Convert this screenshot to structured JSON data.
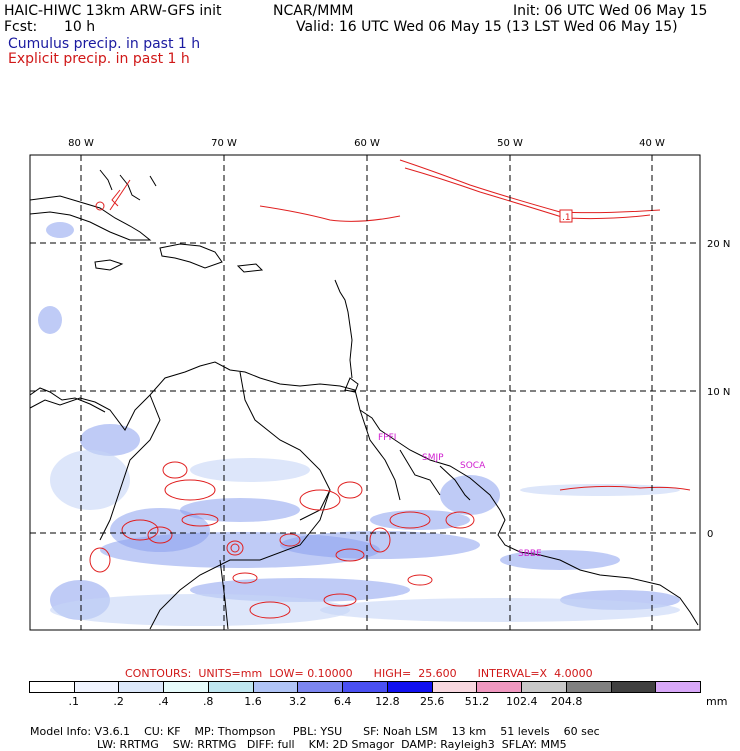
{
  "header": {
    "title": "HAIC-HIWC 13km ARW-GFS init",
    "org": "NCAR/MMM",
    "init": "Init: 06 UTC Wed 06 May 15",
    "fcst_label": "Fcst:",
    "fcst_value": "10 h",
    "valid": "Valid: 16 UTC Wed 06 May 15 (13 LST Wed 06 May 15)",
    "cumulus": "Cumulus precip. in past 1 h",
    "explicit": "Explicit precip. in past 1 h"
  },
  "map": {
    "lon_labels": [
      "80 W",
      "70 W",
      "60 W",
      "50 W",
      "40 W"
    ],
    "lat_labels": [
      "20 N",
      "10 N",
      "0"
    ],
    "stations": [
      "FPFI",
      "SMJP",
      "SOCA",
      "SBBE"
    ],
    "contour_marker": ".1",
    "colors": {
      "coast": "#000000",
      "explicit": "#e02020",
      "cumulus": "#4060e0",
      "grid": "#000000",
      "station": "#d020d0"
    }
  },
  "contours": {
    "label": "CONTOURS:",
    "units": "UNITS=mm",
    "low": "LOW= 0.10000",
    "high": "HIGH=  25.600",
    "interval": "INTERVAL=X  4.0000"
  },
  "colorbar": {
    "labels": [
      ".1",
      ".2",
      ".4",
      ".8",
      "1.6",
      "3.2",
      "6.4",
      "12.8",
      "25.6",
      "51.2",
      "102.4",
      "204.8"
    ],
    "colors": [
      "#ffffff",
      "#f0f4ff",
      "#dce8fa",
      "#e6fbfb",
      "#bfe6f0",
      "#b0c4f6",
      "#7c86f0",
      "#4a50f2",
      "#1010f0",
      "#f8d8e0",
      "#f098c0",
      "#c8c8c8",
      "#808080",
      "#404040",
      "#d8a8f8"
    ],
    "unit": "mm"
  },
  "model_info": {
    "line1": [
      "Model Info: V3.6.1",
      "CU: KF",
      "MP: Thompson",
      "PBL: YSU",
      "SF: Noah LSM",
      "13 km",
      "51 levels",
      "60 sec"
    ],
    "line2": [
      "LW: RRTMG",
      "SW: RRTMG",
      "DIFF: full",
      "KM: 2D Smagor",
      "DAMP: Rayleigh3",
      "SFLAY: MM5"
    ]
  }
}
